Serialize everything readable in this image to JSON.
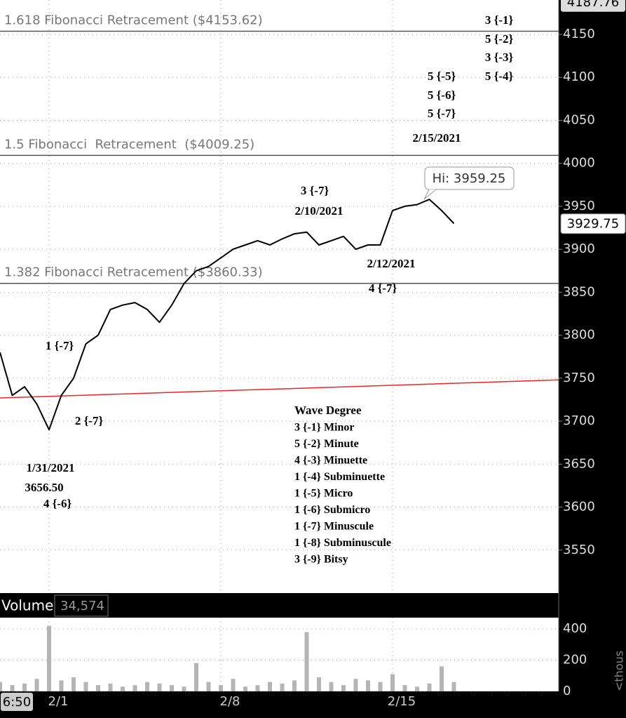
{
  "chart_data": [
    {
      "type": "line",
      "categories": [
        null,
        null,
        null,
        null,
        "2/1",
        null,
        null,
        null,
        null,
        null,
        null,
        null,
        null,
        null,
        null,
        null,
        null,
        null,
        "2/8",
        null,
        null,
        null,
        null,
        null,
        null,
        null,
        null,
        null,
        null,
        null,
        null,
        null,
        "2/15",
        null,
        null,
        null,
        null,
        null,
        null,
        null,
        null,
        null,
        null,
        null,
        null,
        null
      ],
      "values": [
        3780,
        3730,
        3740,
        3720,
        3690,
        3730,
        3750,
        3790,
        3800,
        3830,
        3835,
        3838,
        3830,
        3815,
        3835,
        3860,
        3875,
        3880,
        3890,
        3900,
        3905,
        3910,
        3905,
        3912,
        3918,
        3920,
        3905,
        3910,
        3915,
        3900,
        3905,
        3905,
        3945,
        3950,
        3952,
        3958,
        3945,
        3930,
        null,
        null,
        null,
        null,
        null,
        null,
        null,
        null
      ],
      "color": "#000000",
      "ylim": [
        3500,
        4190
      ],
      "yticks": [
        3550,
        3600,
        3650,
        3700,
        3750,
        3800,
        3850,
        3900,
        3950,
        4000,
        4050,
        4100,
        4150
      ],
      "grid": true,
      "hlines": [
        {
          "label": "1.618 Fibonacci Retracement ($4153.62)",
          "value": 4153.62
        },
        {
          "label": "1.5 Fibonacci  Retracement  ($4009.25)",
          "value": 4009.25
        },
        {
          "label": "1.382 Fibonacci Retracement ($3860.33)",
          "value": 3860.33
        }
      ],
      "trendline": {
        "values": [
          3727,
          3748
        ],
        "color": "#e8262b"
      },
      "annotations": [
        "3 {-1}",
        "5 {-2}",
        "3 {-3}",
        "5 {-4}",
        "5 {-5}",
        "5 {-6}",
        "5 {-7}",
        "2/15/2021",
        "3 {-7}",
        "2/10/2021",
        "2/12/2021",
        "4 {-7}",
        "1 {-7}",
        "2 {-7}",
        "1/31/2021",
        "3656.50",
        "4 {-6}"
      ],
      "legend_title": "Wave Degree",
      "legend_items": [
        "3 {-1} Minor",
        "5 {-2} Minute",
        "4 {-3} Minuette",
        "1 {-4} Subminuette",
        "1 {-5} Micro",
        "1 {-6} Submicro",
        "1 {-7} Minuscule",
        "1 {-8} Subminuscule",
        "3 {-9} Bitsy"
      ],
      "high_label": "Hi: 3959.25",
      "last_price": 3929.75,
      "top_price": 4187.76
    },
    {
      "type": "bar",
      "title": "Volume",
      "subtitle": "34,574",
      "categories": [
        null,
        null,
        null,
        null,
        "2/1",
        null,
        null,
        null,
        null,
        null,
        null,
        null,
        null,
        null,
        null,
        null,
        null,
        null,
        "2/8",
        null,
        null,
        null,
        null,
        null,
        null,
        null,
        null,
        null,
        null,
        null,
        null,
        null,
        "2/15",
        null,
        null,
        null,
        null,
        null,
        null,
        null,
        null,
        null,
        null,
        null,
        null,
        null
      ],
      "values": [
        60,
        40,
        50,
        80,
        420,
        70,
        90,
        60,
        40,
        50,
        30,
        40,
        60,
        50,
        40,
        30,
        180,
        60,
        40,
        80,
        30,
        40,
        60,
        50,
        70,
        380,
        90,
        60,
        40,
        80,
        70,
        60,
        110,
        40,
        30,
        50,
        160,
        60,
        null,
        null,
        null,
        null,
        null,
        null,
        null,
        null
      ],
      "color": "#b4b4b4",
      "ylim": [
        0,
        472
      ],
      "yticks": [
        0,
        200,
        400
      ],
      "y_label": "<thous",
      "grid": true,
      "time_box": "6:50"
    }
  ]
}
